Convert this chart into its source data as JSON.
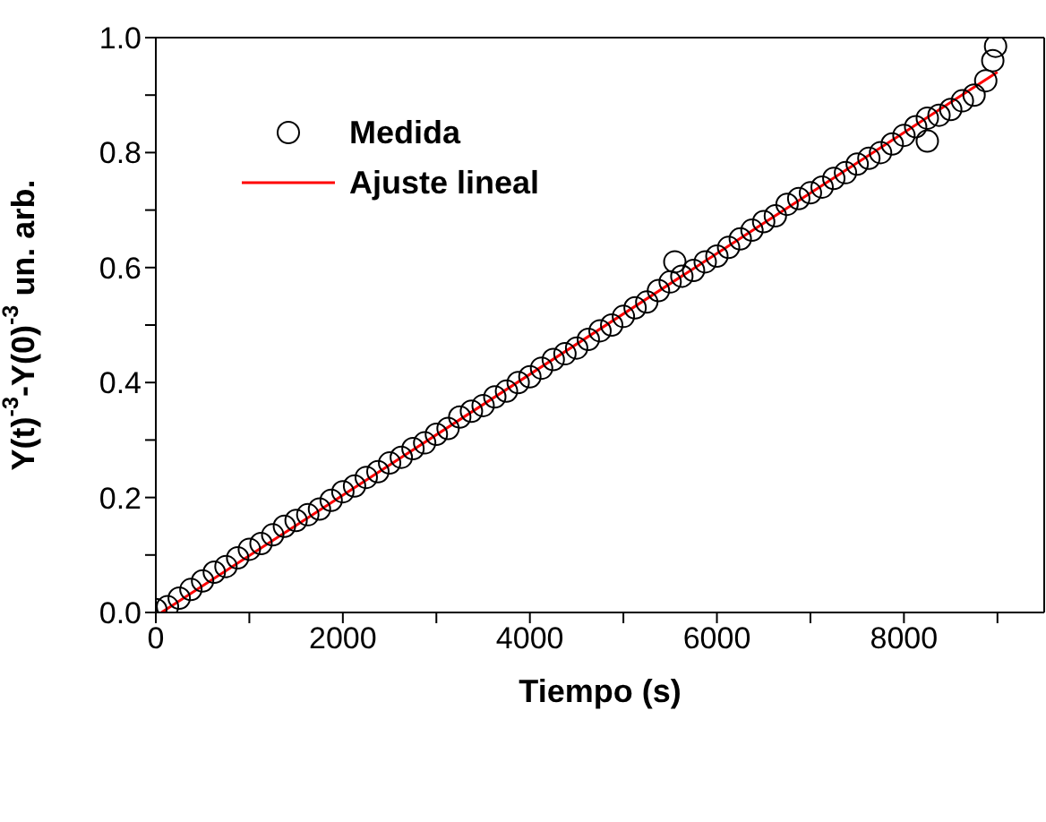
{
  "chart_data": {
    "type": "scatter",
    "xlabel": "Tiempo (s)",
    "ylabel": "Y(t)$^{-3}$-Y(0)$^{-3}$ un. arb.",
    "xlim": [
      0,
      9500
    ],
    "ylim": [
      0,
      1.0
    ],
    "xticks": [
      0,
      {
        "value": 1000,
        "label": null
      },
      2000,
      {
        "value": 3000,
        "label": null
      },
      4000,
      {
        "value": 5000,
        "label": null
      },
      6000,
      {
        "value": 7000,
        "label": null
      },
      8000,
      {
        "value": 9000,
        "label": null
      }
    ],
    "yticks": [
      {
        "value": 0,
        "label": "0.0"
      },
      {
        "value": 0.1,
        "label": null
      },
      0.2,
      {
        "value": 0.3,
        "label": null
      },
      0.4,
      {
        "value": 0.5,
        "label": null
      },
      0.6,
      {
        "value": 0.7,
        "label": null
      },
      0.8,
      {
        "value": 0.9,
        "label": null
      },
      {
        "value": 1.0,
        "label": "1.0"
      }
    ],
    "legend": "top left",
    "series": [
      {
        "name": "Medida",
        "marker": "circle",
        "color": "#000000",
        "x": [
          0,
          125,
          250,
          375,
          500,
          625,
          750,
          875,
          1000,
          1125,
          1250,
          1375,
          1500,
          1625,
          1750,
          1875,
          2000,
          2125,
          2250,
          2375,
          2500,
          2625,
          2750,
          2875,
          3000,
          3125,
          3250,
          3375,
          3500,
          3625,
          3750,
          3875,
          4000,
          4125,
          4250,
          4375,
          4500,
          4625,
          4750,
          4875,
          5000,
          5125,
          5250,
          5375,
          5500,
          5550,
          5625,
          5750,
          5875,
          6000,
          6125,
          6250,
          6375,
          6500,
          6625,
          6750,
          6875,
          7000,
          7125,
          7250,
          7375,
          7500,
          7625,
          7750,
          7875,
          8000,
          8125,
          8250,
          8250,
          8375,
          8500,
          8625,
          8750,
          8875,
          8950,
          8980
        ],
        "values": [
          0.005,
          0.01,
          0.025,
          0.04,
          0.055,
          0.07,
          0.08,
          0.095,
          0.11,
          0.12,
          0.135,
          0.15,
          0.16,
          0.17,
          0.18,
          0.195,
          0.21,
          0.22,
          0.235,
          0.245,
          0.26,
          0.27,
          0.285,
          0.295,
          0.31,
          0.32,
          0.34,
          0.35,
          0.36,
          0.375,
          0.385,
          0.4,
          0.41,
          0.425,
          0.44,
          0.45,
          0.46,
          0.475,
          0.49,
          0.5,
          0.515,
          0.53,
          0.54,
          0.56,
          0.575,
          0.61,
          0.585,
          0.595,
          0.61,
          0.62,
          0.635,
          0.65,
          0.665,
          0.68,
          0.69,
          0.71,
          0.72,
          0.73,
          0.74,
          0.755,
          0.765,
          0.78,
          0.79,
          0.8,
          0.815,
          0.83,
          0.845,
          0.86,
          0.82,
          0.865,
          0.875,
          0.89,
          0.9,
          0.925,
          0.96,
          0.985
        ]
      },
      {
        "name": "Ajuste lineal",
        "type": "line",
        "marker": "none",
        "line_style": "solid",
        "color": "#ff0000",
        "x": [
          60,
          9000
        ],
        "values": [
          0,
          0.94
        ]
      }
    ]
  }
}
